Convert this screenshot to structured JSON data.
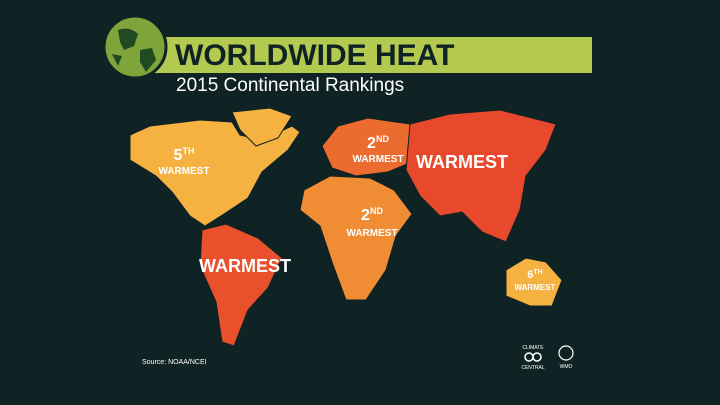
{
  "header": {
    "title": "WORLDWIDE HEAT",
    "subtitle": "2015 Continental Rankings"
  },
  "regions": [
    {
      "name": "North America",
      "rank": "5",
      "suffix": "TH",
      "label": "WARMEST"
    },
    {
      "name": "South America",
      "label": "WARMEST"
    },
    {
      "name": "Europe",
      "rank": "2",
      "suffix": "ND",
      "label": "WARMEST"
    },
    {
      "name": "Asia",
      "label": "WARMEST"
    },
    {
      "name": "Africa",
      "rank": "2",
      "suffix": "ND",
      "label": "WARMEST"
    },
    {
      "name": "Australia",
      "rank": "6",
      "suffix": "TH",
      "label": "WARMEST"
    }
  ],
  "source": "Source: NOAA/NCEI",
  "logos": {
    "climate_top": "CLIMATE",
    "climate_bottom": "CENTRAL",
    "wmo": "WMO"
  }
}
